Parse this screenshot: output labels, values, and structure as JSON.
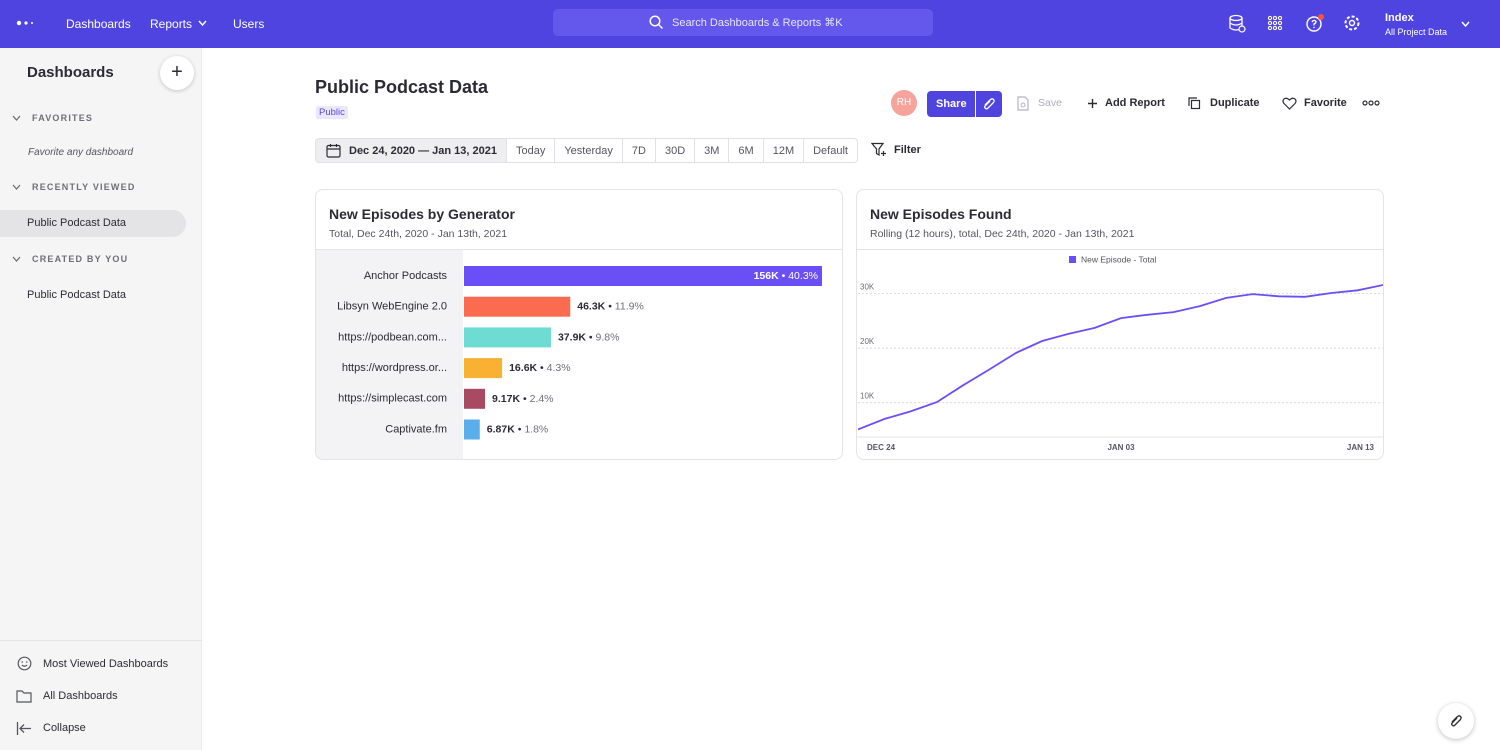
{
  "nav": {
    "links": [
      "Dashboards",
      "Reports",
      "Users"
    ],
    "search": "Search Dashboards & Reports ⌘K",
    "project": "Index",
    "project_sub": "All Project Data"
  },
  "sidebar": {
    "title": "Dashboards",
    "sections": [
      {
        "heading": "FAVORITES",
        "items": [
          "Favorite any dashboard"
        ]
      },
      {
        "heading": "RECENTLY VIEWED",
        "items": [
          "Public Podcast Data"
        ]
      },
      {
        "heading": "CREATED BY YOU",
        "items": [
          "Public Podcast Data"
        ]
      }
    ],
    "footer": [
      "Most Viewed Dashboards",
      "All Dashboards",
      "Collapse"
    ]
  },
  "header": {
    "title": "Public Podcast Data",
    "badge": "Public",
    "avatar": "RH",
    "actions": [
      "Share",
      "Save",
      "Add Report",
      "Duplicate",
      "Favorite"
    ]
  },
  "date_range": {
    "selected": "Dec 24, 2020 — Jan 13, 2021",
    "presets": [
      "Today",
      "Yesterday",
      "7D",
      "30D",
      "3M",
      "6M",
      "12M",
      "Default"
    ],
    "filter": "Filter"
  },
  "chart_data": [
    {
      "type": "bar",
      "orientation": "horizontal",
      "title": "New Episodes by Generator",
      "subtitle": "Total, Dec 24th, 2020 - Jan 13th, 2021",
      "categories": [
        "Anchor Podcasts",
        "Libsyn WebEngine 2.0",
        "https://podbean.com...",
        "https://wordpress.or...",
        "https://simplecast.com",
        "Captivate.fm"
      ],
      "values": [
        156000,
        46300,
        37900,
        16600,
        9170,
        6870
      ],
      "value_labels": [
        "156K",
        "46.3K",
        "37.9K",
        "16.6K",
        "9.17K",
        "6.87K"
      ],
      "shares": [
        40.3,
        11.9,
        9.8,
        4.3,
        2.4,
        1.8
      ],
      "share_labels": [
        "40.3%",
        "11.9%",
        "9.8%",
        "4.3%",
        "2.4%",
        "1.8%"
      ],
      "colors": [
        "#6b4ff6",
        "#fb6b50",
        "#6fdcd4",
        "#f8b133",
        "#a94a63",
        "#5aaeec"
      ],
      "xlim": [
        0,
        156000
      ]
    },
    {
      "type": "line",
      "title": "New Episodes Found",
      "subtitle": "Rolling (12 hours), total, Dec 24th, 2020 - Jan 13th, 2021",
      "categories": [
        "DEC 24",
        null,
        null,
        null,
        null,
        null,
        null,
        null,
        null,
        null,
        "JAN 03",
        null,
        null,
        null,
        null,
        null,
        null,
        null,
        null,
        null,
        "JAN 13"
      ],
      "series": [
        {
          "name": "New Episode - Total",
          "color": "#6b4ff6",
          "values": [
            5100,
            7000,
            8400,
            10100,
            13200,
            16100,
            19100,
            21300,
            22600,
            23700,
            25500,
            26100,
            26600,
            27700,
            29200,
            29900,
            29500,
            29400,
            30100,
            30600,
            31600
          ]
        }
      ],
      "ylim": [
        3700,
        37800
      ],
      "yticks": [
        {
          "value": 10000,
          "label": "10K"
        },
        {
          "value": 20000,
          "label": "20K"
        },
        {
          "value": 30000,
          "label": "30K"
        }
      ],
      "grid": true
    }
  ]
}
